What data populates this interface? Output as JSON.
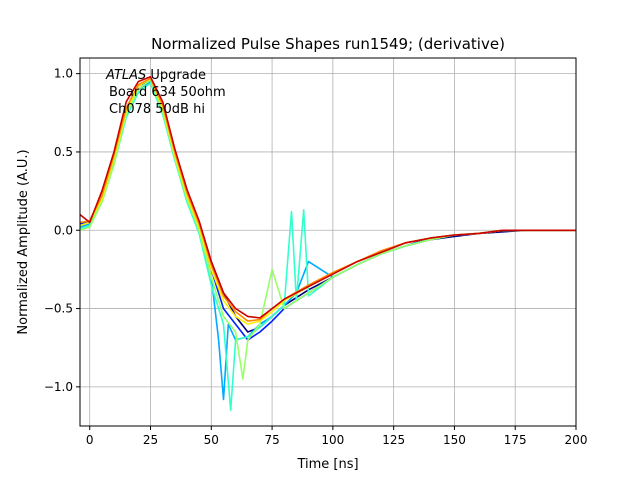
{
  "chart_data": {
    "type": "line",
    "title": "Normalized Pulse Shapes run1549; (derivative)",
    "xlabel": "Time [ns]",
    "ylabel": "Normalized Amplitude (A.U.)",
    "xlim": [
      -4,
      200
    ],
    "ylim": [
      -1.25,
      1.1
    ],
    "xticks": [
      0,
      25,
      50,
      75,
      100,
      125,
      150,
      175,
      200
    ],
    "yticks": [
      -1.0,
      -0.5,
      0.0,
      0.5,
      1.0
    ],
    "xtick_labels": [
      "0",
      "25",
      "50",
      "75",
      "100",
      "125",
      "150",
      "175",
      "200"
    ],
    "ytick_labels": [
      "−1.0",
      "−0.5",
      "0.0",
      "0.5",
      "1.0"
    ],
    "grid": true,
    "annotation": {
      "italic": "ATLAS",
      "rest": " Upgrade",
      "line2": "Board 634 50ohm",
      "line3": "Ch078 50dB hi"
    },
    "series": [
      {
        "color": "#000080",
        "x": [
          -4,
          0,
          5,
          10,
          15,
          20,
          25,
          30,
          35,
          40,
          45,
          50,
          55,
          60,
          65,
          70,
          75,
          80,
          90,
          100,
          110,
          120,
          130,
          140,
          150,
          160,
          170,
          180,
          190,
          200
        ],
        "y": [
          0.05,
          0.05,
          0.2,
          0.45,
          0.75,
          0.9,
          0.95,
          0.8,
          0.5,
          0.25,
          0.05,
          -0.2,
          -0.4,
          -0.55,
          -0.65,
          -0.62,
          -0.55,
          -0.48,
          -0.38,
          -0.3,
          -0.22,
          -0.15,
          -0.1,
          -0.06,
          -0.04,
          -0.02,
          -0.01,
          0.0,
          0.0,
          0.0
        ]
      },
      {
        "color": "#0022ff",
        "x": [
          -4,
          0,
          5,
          10,
          15,
          20,
          25,
          30,
          35,
          40,
          45,
          50,
          55,
          60,
          65,
          70,
          75,
          80,
          90,
          100,
          110,
          120,
          130,
          140,
          150,
          160,
          170,
          180,
          190,
          200
        ],
        "y": [
          0.04,
          0.06,
          0.22,
          0.48,
          0.78,
          0.92,
          0.96,
          0.78,
          0.48,
          0.22,
          0.02,
          -0.25,
          -0.5,
          -0.6,
          -0.7,
          -0.65,
          -0.58,
          -0.5,
          -0.4,
          -0.3,
          -0.22,
          -0.15,
          -0.1,
          -0.05,
          -0.03,
          -0.02,
          0.0,
          0.0,
          0.0,
          0.0
        ]
      },
      {
        "color": "#00aaff",
        "x": [
          -4,
          0,
          5,
          10,
          15,
          20,
          25,
          30,
          35,
          40,
          45,
          50,
          53,
          55,
          57,
          60,
          65,
          70,
          75,
          80,
          85,
          90,
          100,
          110,
          120,
          130,
          140,
          150,
          160,
          170,
          180,
          190,
          200
        ],
        "y": [
          0.02,
          0.04,
          0.2,
          0.45,
          0.75,
          0.9,
          0.95,
          0.75,
          0.45,
          0.2,
          0.0,
          -0.3,
          -0.7,
          -1.08,
          -0.6,
          -0.7,
          -0.68,
          -0.6,
          -0.55,
          -0.48,
          -0.4,
          -0.2,
          -0.3,
          -0.22,
          -0.15,
          -0.1,
          -0.06,
          -0.03,
          -0.02,
          0.0,
          0.0,
          0.0,
          0.0
        ]
      },
      {
        "color": "#33ffcc",
        "x": [
          -4,
          0,
          5,
          10,
          15,
          20,
          25,
          30,
          35,
          40,
          45,
          50,
          55,
          58,
          60,
          65,
          70,
          75,
          80,
          83,
          85,
          88,
          90,
          95,
          100,
          110,
          120,
          130,
          140,
          150,
          160,
          170,
          180,
          190,
          200
        ],
        "y": [
          0.01,
          0.03,
          0.18,
          0.42,
          0.72,
          0.88,
          0.94,
          0.74,
          0.45,
          0.18,
          -0.02,
          -0.35,
          -0.6,
          -1.15,
          -0.7,
          -0.68,
          -0.62,
          -0.55,
          -0.48,
          0.12,
          -0.45,
          0.13,
          -0.42,
          -0.36,
          -0.3,
          -0.22,
          -0.15,
          -0.1,
          -0.06,
          -0.03,
          -0.02,
          0.0,
          0.0,
          0.0,
          0.0
        ]
      },
      {
        "color": "#99ff66",
        "x": [
          -4,
          0,
          5,
          10,
          15,
          20,
          25,
          30,
          35,
          40,
          45,
          50,
          55,
          60,
          63,
          65,
          70,
          75,
          80,
          90,
          100,
          110,
          120,
          130,
          140,
          150,
          160,
          170,
          180,
          190,
          200
        ],
        "y": [
          0.0,
          0.02,
          0.18,
          0.42,
          0.74,
          0.9,
          0.96,
          0.76,
          0.46,
          0.2,
          0.0,
          -0.3,
          -0.55,
          -0.65,
          -0.95,
          -0.7,
          -0.6,
          -0.25,
          -0.5,
          -0.4,
          -0.3,
          -0.22,
          -0.15,
          -0.1,
          -0.06,
          -0.03,
          -0.02,
          0.0,
          0.0,
          0.0,
          0.0
        ]
      },
      {
        "color": "#ffee00",
        "x": [
          -4,
          0,
          5,
          10,
          15,
          20,
          25,
          30,
          35,
          40,
          45,
          50,
          55,
          60,
          65,
          70,
          75,
          80,
          90,
          100,
          110,
          120,
          130,
          140,
          150,
          160,
          170,
          180,
          190,
          200
        ],
        "y": [
          0.03,
          0.05,
          0.2,
          0.46,
          0.76,
          0.92,
          0.97,
          0.78,
          0.48,
          0.22,
          0.02,
          -0.25,
          -0.45,
          -0.55,
          -0.6,
          -0.58,
          -0.52,
          -0.45,
          -0.36,
          -0.28,
          -0.2,
          -0.14,
          -0.08,
          -0.05,
          -0.03,
          -0.02,
          0.0,
          0.0,
          0.0,
          0.0
        ]
      },
      {
        "color": "#ff8800",
        "x": [
          -4,
          0,
          5,
          10,
          15,
          20,
          25,
          30,
          35,
          40,
          45,
          50,
          55,
          60,
          65,
          70,
          75,
          80,
          90,
          100,
          110,
          120,
          130,
          140,
          150,
          160,
          170,
          180,
          190,
          200
        ],
        "y": [
          0.05,
          0.06,
          0.22,
          0.48,
          0.78,
          0.93,
          0.97,
          0.8,
          0.5,
          0.24,
          0.04,
          -0.22,
          -0.42,
          -0.52,
          -0.58,
          -0.57,
          -0.5,
          -0.44,
          -0.35,
          -0.27,
          -0.2,
          -0.13,
          -0.08,
          -0.05,
          -0.03,
          -0.02,
          0.0,
          0.0,
          0.0,
          0.0
        ]
      },
      {
        "color": "#cc0000",
        "x": [
          -4,
          0,
          5,
          10,
          15,
          20,
          25,
          30,
          35,
          40,
          45,
          50,
          55,
          60,
          65,
          70,
          75,
          80,
          90,
          100,
          110,
          120,
          130,
          140,
          150,
          160,
          170,
          180,
          190,
          200
        ],
        "y": [
          0.1,
          0.05,
          0.25,
          0.5,
          0.82,
          0.95,
          0.98,
          0.82,
          0.52,
          0.26,
          0.06,
          -0.2,
          -0.4,
          -0.5,
          -0.55,
          -0.56,
          -0.5,
          -0.44,
          -0.36,
          -0.28,
          -0.2,
          -0.14,
          -0.08,
          -0.05,
          -0.03,
          -0.02,
          0.0,
          0.0,
          0.0,
          0.0
        ]
      }
    ]
  }
}
